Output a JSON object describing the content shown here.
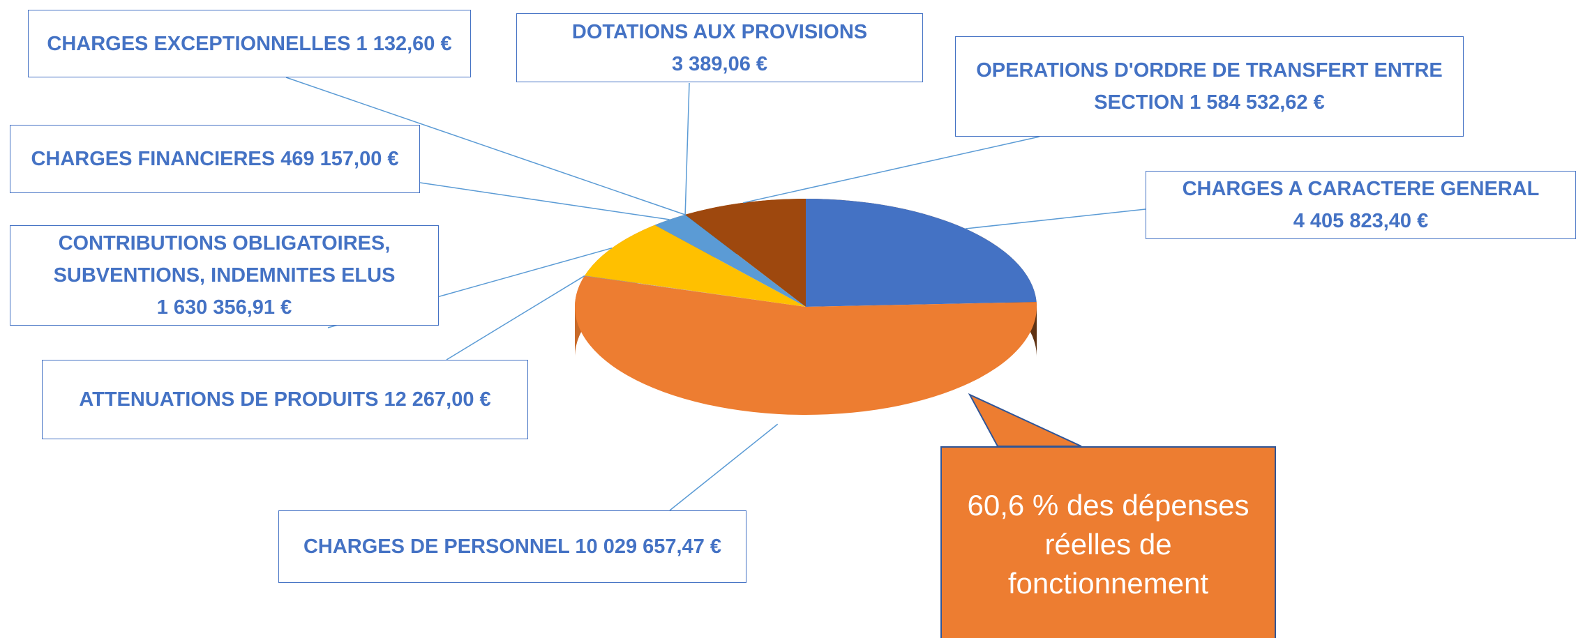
{
  "chart_data": {
    "type": "pie",
    "categories": [
      "CHARGES A CARACTERE GENERAL",
      "CHARGES DE PERSONNEL",
      "ATTENUATIONS DE PRODUITS",
      "CONTRIBUTIONS OBLIGATOIRES, SUBVENTIONS, INDEMNITES ELUS",
      "CHARGES FINANCIERES",
      "CHARGES EXCEPTIONNELLES",
      "DOTATIONS AUX PROVISIONS",
      "OPERATIONS D'ORDRE DE TRANSFERT ENTRE SECTION"
    ],
    "values": [
      4405823.4,
      10029657.47,
      12267.0,
      1630356.91,
      469157.0,
      1132.6,
      3389.06,
      1584532.62
    ],
    "value_labels": [
      "4 405 823,40 €",
      "10 029 657,47 €",
      "12 267,00 €",
      "1 630 356,91 €",
      "469 157,00 €",
      "1 132,60 €",
      "3 389,06 €",
      "1 584 532,62 €"
    ],
    "colors": [
      "#4472c4",
      "#ed7d31",
      "#a5a5a5",
      "#ffc000",
      "#5b9bd5",
      "#70ad47",
      "#264478",
      "#9e480e"
    ],
    "annotation": "60,6 % des dépenses réelles de fonctionnement"
  }
}
